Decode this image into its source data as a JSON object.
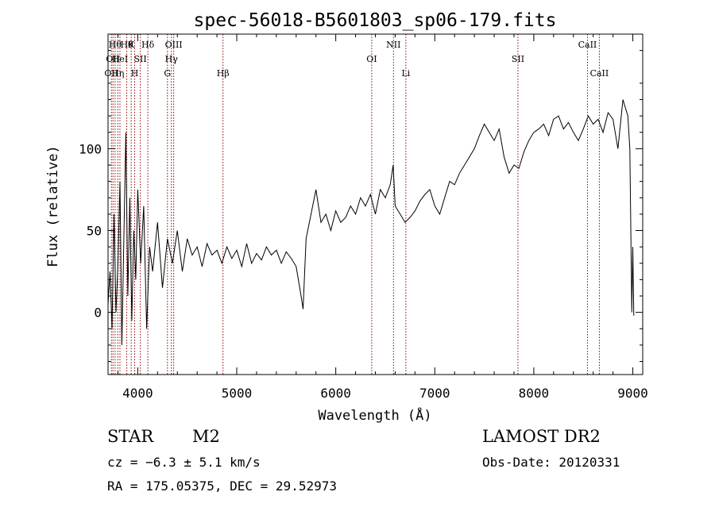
{
  "chart_data": {
    "type": "line",
    "title": "spec-56018-B5601803_sp06-179.fits",
    "xlabel": "Wavelength (Å)",
    "ylabel": "Flux (relative)",
    "xlim": [
      3700,
      9100
    ],
    "ylim": [
      -38,
      170
    ],
    "xticks": [
      4000,
      5000,
      6000,
      7000,
      8000,
      9000
    ],
    "yticks": [
      0,
      50,
      100
    ],
    "grid": false,
    "line_color": "#000000",
    "marker_color": "#8b0000",
    "series": [
      {
        "x": [
          3700,
          3720,
          3740,
          3760,
          3780,
          3800,
          3820,
          3840,
          3860,
          3880,
          3900,
          3920,
          3940,
          3960,
          3980,
          4000,
          4030,
          4060,
          4090,
          4120,
          4150,
          4200,
          4250,
          4300,
          4350,
          4400,
          4450,
          4500,
          4550,
          4600,
          4650,
          4700,
          4750,
          4800,
          4850,
          4900,
          4950,
          5000,
          5050,
          5100,
          5150,
          5200,
          5250,
          5300,
          5350,
          5400,
          5450,
          5500,
          5550,
          5600,
          5650,
          5670,
          5700,
          5750,
          5800,
          5850,
          5900,
          5950,
          6000,
          6050,
          6100,
          6150,
          6200,
          6250,
          6300,
          6350,
          6400,
          6450,
          6500,
          6550,
          6580,
          6600,
          6650,
          6700,
          6750,
          6800,
          6850,
          6900,
          6950,
          7000,
          7050,
          7100,
          7150,
          7200,
          7250,
          7300,
          7350,
          7400,
          7450,
          7500,
          7550,
          7600,
          7650,
          7700,
          7750,
          7800,
          7850,
          7900,
          7950,
          8000,
          8050,
          8100,
          8150,
          8200,
          8250,
          8300,
          8350,
          8400,
          8450,
          8500,
          8550,
          8600,
          8650,
          8700,
          8750,
          8800,
          8850,
          8900,
          8950,
          8970,
          8990,
          9000,
          9010
        ],
        "y": [
          5,
          25,
          -10,
          60,
          0,
          30,
          80,
          -20,
          45,
          110,
          10,
          70,
          -5,
          50,
          20,
          75,
          30,
          65,
          -10,
          40,
          25,
          55,
          15,
          45,
          30,
          50,
          25,
          45,
          35,
          40,
          28,
          42,
          35,
          38,
          30,
          40,
          33,
          38,
          28,
          42,
          30,
          36,
          32,
          40,
          35,
          38,
          30,
          37,
          33,
          28,
          10,
          2,
          45,
          60,
          75,
          55,
          60,
          50,
          62,
          55,
          58,
          65,
          60,
          70,
          65,
          72,
          60,
          75,
          70,
          78,
          90,
          65,
          60,
          55,
          58,
          62,
          68,
          72,
          75,
          65,
          60,
          70,
          80,
          78,
          85,
          90,
          95,
          100,
          108,
          115,
          110,
          105,
          112,
          95,
          85,
          90,
          88,
          98,
          105,
          110,
          112,
          115,
          108,
          118,
          120,
          112,
          116,
          110,
          105,
          112,
          120,
          115,
          118,
          110,
          122,
          118,
          100,
          130,
          120,
          100,
          0,
          40,
          -2
        ]
      }
    ],
    "lines": [
      {
        "x": 3734,
        "label": "OII",
        "row": 2
      },
      {
        "x": 3750,
        "label": "OII",
        "row": 1
      },
      {
        "x": 3771,
        "label": "Hθ",
        "row": 0
      },
      {
        "x": 3798,
        "label": "Hη",
        "row": 2
      },
      {
        "x": 3820,
        "label": "HeI",
        "row": 1
      },
      {
        "x": 3889,
        "label": "Hθ",
        "row": 0
      },
      {
        "x": 3934,
        "label": "K",
        "row": 0
      },
      {
        "x": 3969,
        "label": "H",
        "row": 2
      },
      {
        "x": 4026,
        "label": "SII",
        "row": 1
      },
      {
        "x": 4102,
        "label": "Hδ",
        "row": 0
      },
      {
        "x": 4300,
        "label": "G",
        "row": 2
      },
      {
        "x": 4340,
        "label": "Hγ",
        "row": 1
      },
      {
        "x": 4363,
        "label": "OIII",
        "row": 0
      },
      {
        "x": 4861,
        "label": "Hβ",
        "row": 2
      },
      {
        "x": 6363,
        "label": "OI",
        "row": 1
      },
      {
        "x": 6583,
        "label": "NII",
        "row": 0
      },
      {
        "x": 6708,
        "label": "Li",
        "row": 2
      },
      {
        "x": 7840,
        "label": "SII",
        "row": 1
      },
      {
        "x": 8542,
        "label": "CaII",
        "row": 0
      },
      {
        "x": 8662,
        "label": "CaII",
        "row": 2
      }
    ]
  },
  "info": {
    "class": "STAR",
    "subclass": "M2",
    "survey": "LAMOST DR2",
    "cz": "cz = −6.3 ± 5.1 km/s",
    "obsdate": "Obs-Date: 20120331",
    "radec": "RA = 175.05375, DEC =  29.52973"
  }
}
